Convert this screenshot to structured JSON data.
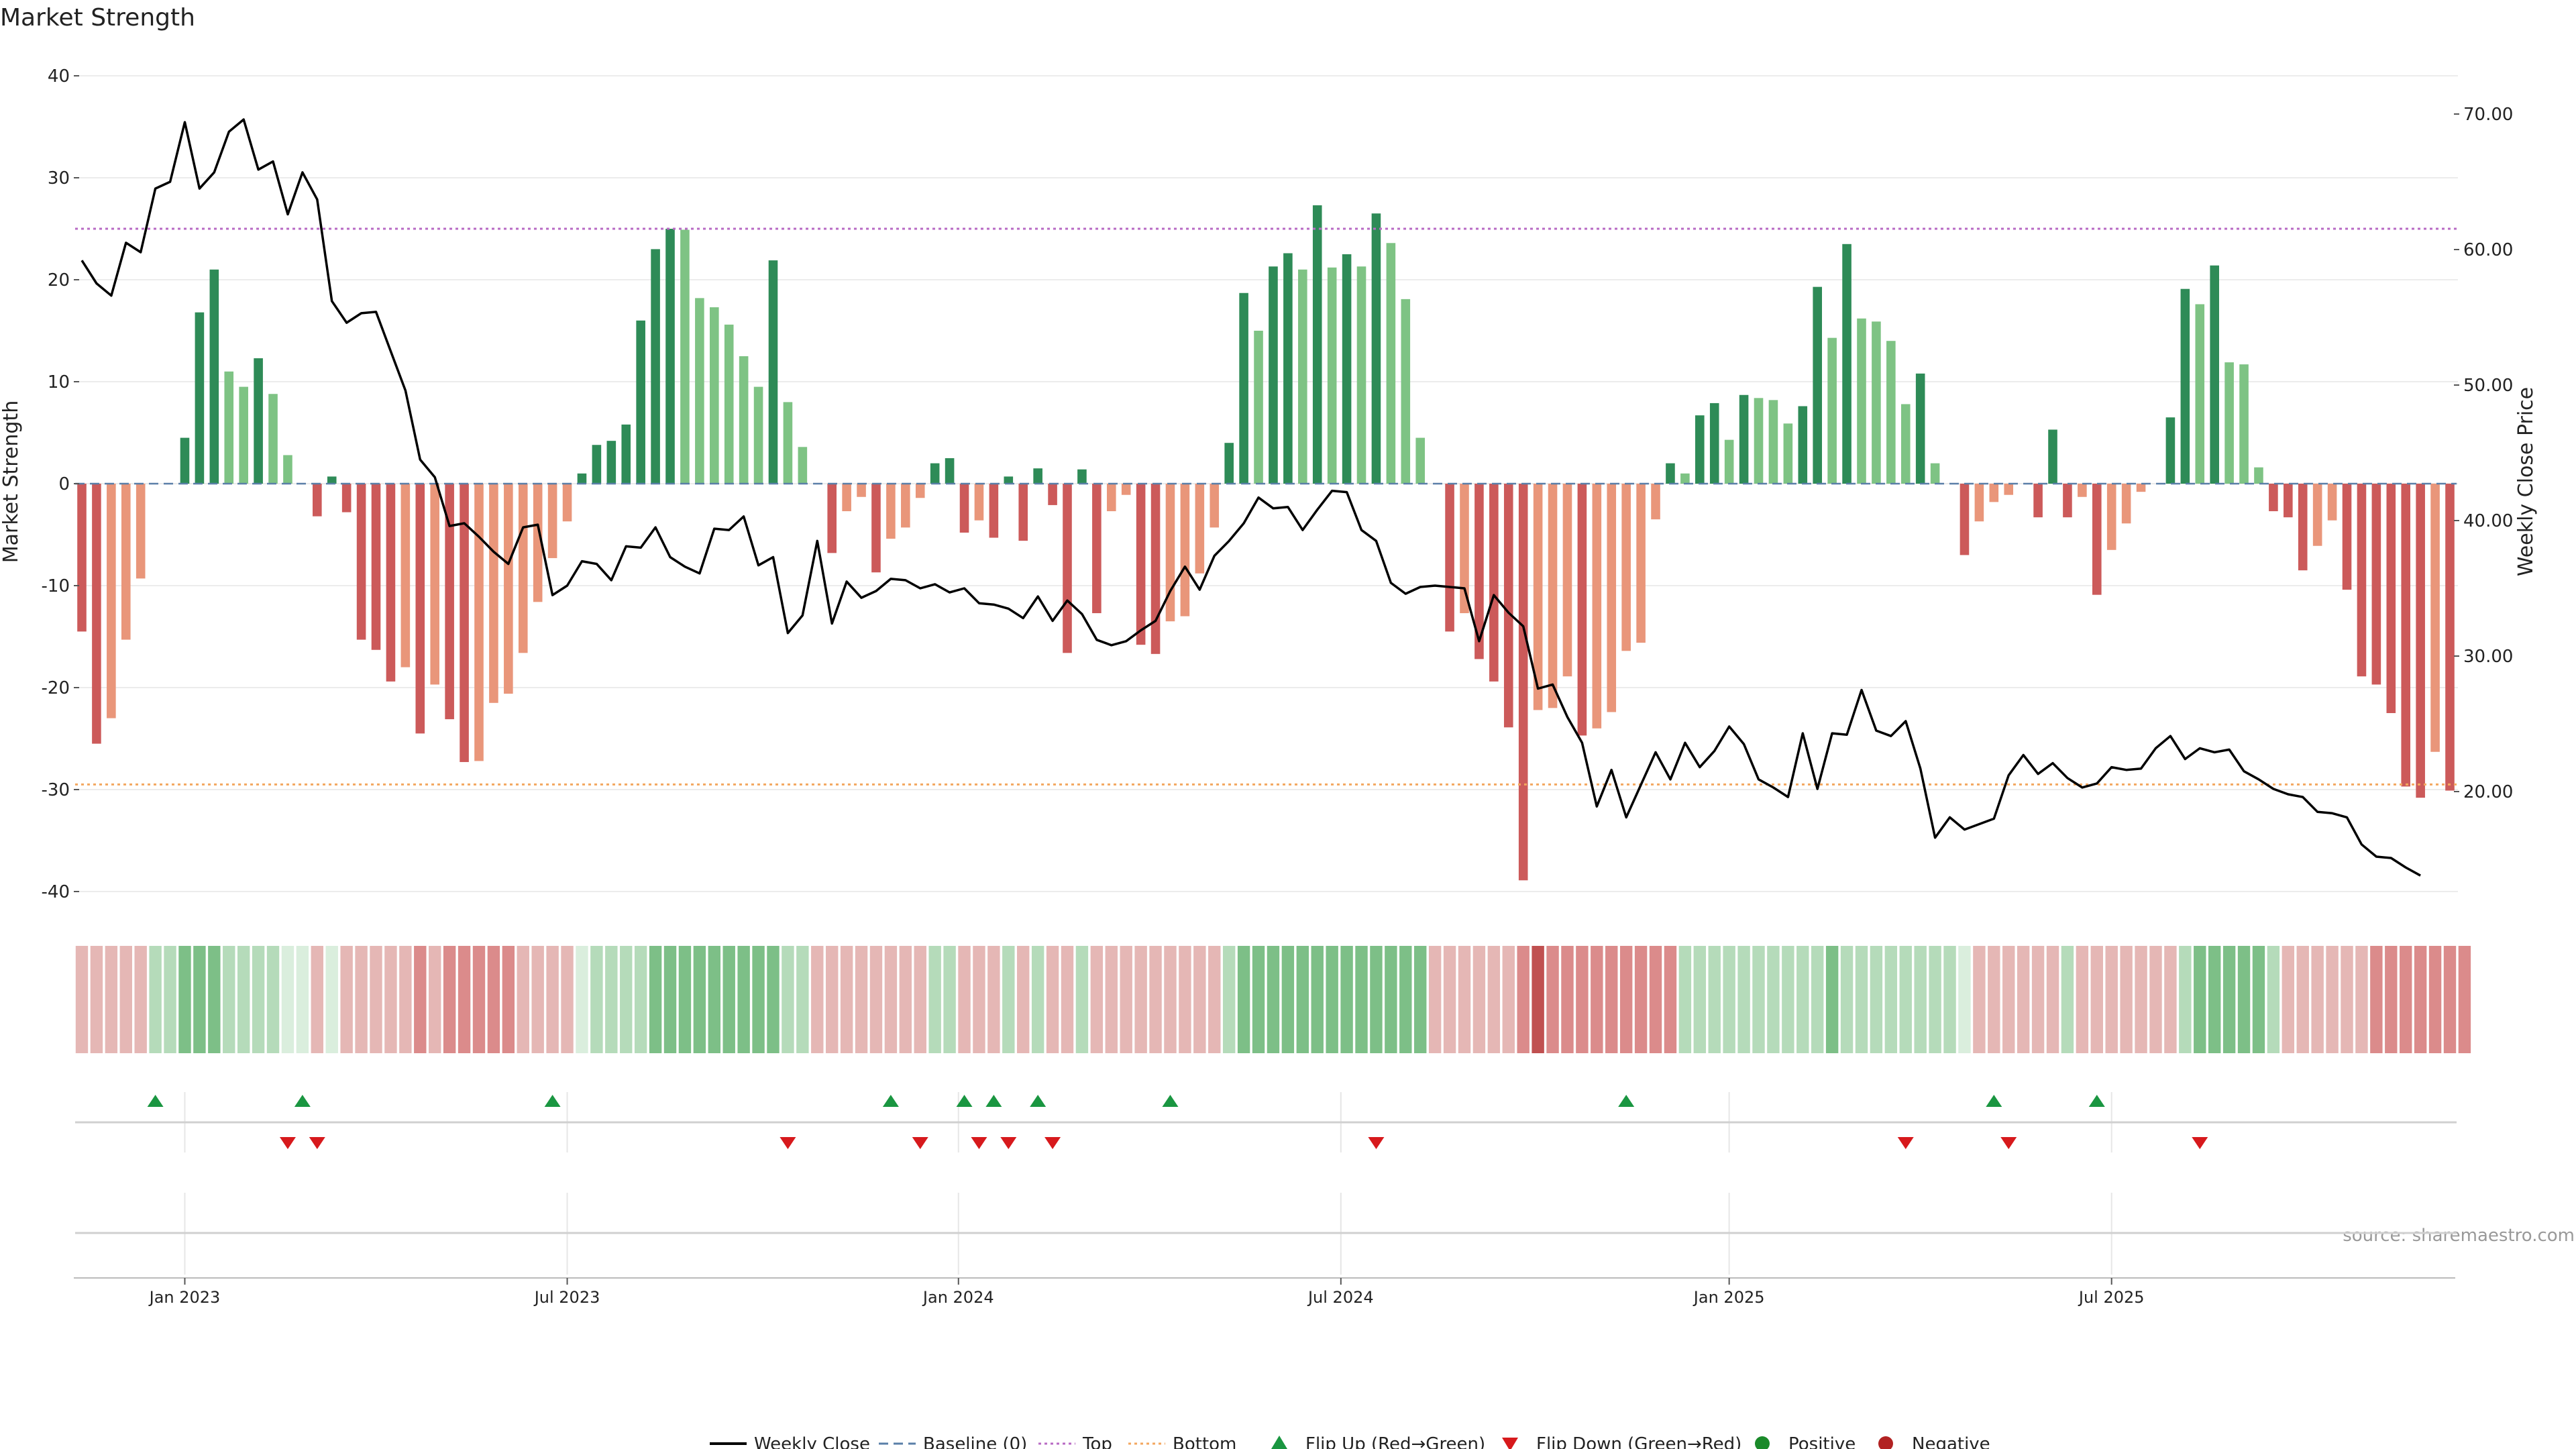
{
  "chart_data": {
    "type": "bar",
    "title": "Market Strength",
    "ylabel": "Market Strength",
    "y2label": "Weekly Close Price",
    "ylim": [
      -42,
      42
    ],
    "y2lim": [
      13.1,
      74.9
    ],
    "yticks": [
      -40,
      -30,
      -20,
      -10,
      0,
      10,
      20,
      30,
      40
    ],
    "y2ticks": [
      "20.00",
      "30.00",
      "40.00",
      "50.00",
      "60.00",
      "70.00"
    ],
    "top_line": 25,
    "bottom_line": -29.5,
    "x_tick_labels": [
      "Jan 2023",
      "Jul 2023",
      "Jan 2024",
      "Jul 2024",
      "Jan 2025",
      "Jul 2025"
    ],
    "x_tick_weeks": [
      7,
      33,
      59.6,
      85.6,
      112,
      138
    ],
    "grid": true,
    "legend_position": "bottom-center",
    "source_note": "source: sharemaestro.com",
    "colors": {
      "pos_strong": "#2e8b57",
      "pos_light": "#7ec384",
      "neg_strong": "#cc5a5a",
      "neg_light": "#e9967a",
      "price": "#000000",
      "top": "#b86bc4",
      "bottom": "#f3a75f",
      "baseline": "#5a7fa8",
      "flip_up": "#1a9641",
      "flip_down": "#d7191c"
    },
    "strength": [
      -14.5,
      -25.5,
      -23,
      -15.3,
      -9.3,
      0,
      0,
      4.5,
      16.8,
      21,
      11,
      9.5,
      12.3,
      8.8,
      2.8,
      0,
      -3.2,
      0.7,
      -2.8,
      -15.3,
      -16.3,
      -19.4,
      -18,
      -24.5,
      -19.7,
      -23.1,
      -27.3,
      -27.2,
      -21.5,
      -20.6,
      -16.6,
      -11.6,
      -7.3,
      -3.7,
      1,
      3.8,
      4.2,
      5.8,
      16,
      23,
      25,
      24.9,
      18.2,
      17.3,
      15.6,
      12.5,
      9.5,
      21.9,
      8,
      3.6,
      0,
      -6.8,
      -2.7,
      -1.3,
      -8.7,
      -5.4,
      -4.3,
      -1.4,
      2,
      2.5,
      -4.8,
      -3.6,
      -5.3,
      0.7,
      -5.6,
      1.5,
      -2.1,
      -16.6,
      1.4,
      -12.7,
      -2.7,
      -1.1,
      -15.8,
      -16.7,
      -13.5,
      -13,
      -8.8,
      -4.3,
      4,
      18.7,
      15,
      21.3,
      22.6,
      21,
      27.3,
      21.2,
      22.5,
      21.3,
      26.5,
      23.6,
      18.1,
      4.5,
      0,
      -14.5,
      -12.7,
      -17.2,
      -19.4,
      -23.9,
      -38.9,
      -22.2,
      -22,
      -18.9,
      -24.7,
      -24,
      -22.4,
      -16.4,
      -15.6,
      -3.5,
      2,
      1,
      6.7,
      7.9,
      4.3,
      8.7,
      8.4,
      8.2,
      5.9,
      7.6,
      19.3,
      14.3,
      23.5,
      16.2,
      15.9,
      14,
      7.8,
      10.8,
      2,
      0,
      -7,
      -3.7,
      -1.8,
      -1.1,
      0,
      -3.3,
      5.3,
      -3.3,
      -1.3,
      -10.9,
      -6.5,
      -3.9,
      -0.8,
      0,
      6.5,
      19.1,
      17.6,
      21.4,
      11.9,
      11.7,
      1.6,
      -2.7,
      -3.3,
      -8.5,
      -6.1,
      -3.6,
      -10.4,
      -18.9,
      -19.7,
      -22.5,
      -29.7,
      -30.8,
      -26.3,
      -30.1
    ],
    "heat": [
      -1,
      -1,
      -1,
      -1,
      -1,
      1,
      1,
      2,
      2,
      2,
      1,
      1,
      1,
      1,
      0,
      0,
      -1,
      0,
      -1,
      -1,
      -1,
      -1,
      -1,
      -2,
      -1,
      -2,
      -2,
      -2,
      -2,
      -2,
      -1,
      -1,
      -1,
      -1,
      0,
      1,
      1,
      1,
      1,
      2,
      2,
      2,
      2,
      2,
      2,
      2,
      2,
      2,
      1,
      1,
      -1,
      -1,
      -1,
      -1,
      -1,
      -1,
      -1,
      -1,
      1,
      1,
      -1,
      -1,
      -1,
      1,
      -1,
      1,
      -1,
      -1,
      1,
      -1,
      -1,
      -1,
      -1,
      -1,
      -1,
      -1,
      -1,
      -1,
      1,
      2,
      2,
      2,
      2,
      2,
      2,
      2,
      2,
      2,
      2,
      2,
      2,
      2,
      -1,
      -1,
      -1,
      -1,
      -1,
      -1,
      -2,
      -3,
      -2,
      -2,
      -2,
      -2,
      -2,
      -2,
      -2,
      -2,
      -2,
      1,
      1,
      1,
      1,
      1,
      1,
      1,
      1,
      1,
      1,
      2,
      1,
      1,
      1,
      1,
      1,
      1,
      1,
      1,
      0,
      -1,
      -1,
      -1,
      -1,
      -1,
      -1,
      1,
      -1,
      -1,
      -1,
      -1,
      -1,
      -1,
      -1,
      1,
      2,
      2,
      2,
      2,
      2,
      1,
      -1,
      -1,
      -1,
      -1,
      -1,
      -1,
      -2,
      -2,
      -2,
      -2,
      -2,
      -2,
      -2
    ],
    "flip_up_weeks": [
      5,
      15,
      32,
      55,
      60,
      62,
      65,
      74,
      105,
      130,
      137
    ],
    "flip_down_weeks": [
      14,
      16,
      48,
      57,
      61,
      63,
      66,
      88,
      124,
      131,
      144
    ],
    "price": [
      59.2,
      57.5,
      56.6,
      60.5,
      59.8,
      64.5,
      65,
      69.4,
      64.5,
      65.7,
      68.7,
      69.6,
      65.9,
      66.5,
      62.6,
      65.7,
      63.7,
      56.2,
      54.6,
      55.3,
      55.4,
      52.5,
      49.6,
      44.5,
      43.2,
      39.6,
      39.8,
      38.8,
      37.7,
      36.8,
      39.5,
      39.7,
      34.5,
      35.2,
      37,
      36.8,
      35.6,
      38.1,
      38,
      39.5,
      37.3,
      36.6,
      36.1,
      39.4,
      39.3,
      40.3,
      36.7,
      37.3,
      31.7,
      33,
      38.5,
      32.4,
      35.5,
      34.3,
      34.8,
      35.7,
      35.6,
      35,
      35.3,
      34.7,
      35,
      33.9,
      33.8,
      33.5,
      32.8,
      34.4,
      32.6,
      34.1,
      33.1,
      31.2,
      30.8,
      31.1,
      31.9,
      32.6,
      34.8,
      36.6,
      34.9,
      37.4,
      38.5,
      39.8,
      41.7,
      40.9,
      41,
      39.3,
      40.8,
      42.2,
      42.1,
      39.3,
      38.5,
      35.4,
      34.6,
      35.1,
      35.2,
      35.1,
      35,
      31.1,
      34.5,
      33.2,
      32.2,
      27.6,
      27.9,
      25.5,
      23.6,
      18.9,
      21.6,
      18.1,
      20.5,
      22.9,
      20.9,
      23.6,
      21.8,
      23,
      24.8,
      23.5,
      20.9,
      20.3,
      19.6,
      24.3,
      20.2,
      24.3,
      24.2,
      27.5,
      24.5,
      24.1,
      25.2,
      21.7,
      16.6,
      18.1,
      17.2,
      17.6,
      18,
      21.2,
      22.7,
      21.3,
      22.1,
      21,
      20.3,
      20.6,
      21.8,
      21.6,
      21.7,
      23.2,
      24.1,
      22.4,
      23.2,
      22.9,
      23.1,
      21.5,
      20.9,
      20.2,
      19.8,
      19.6,
      18.5,
      18.4,
      18.1,
      16.1,
      15.2,
      15.1,
      14.4,
      13.8
    ]
  },
  "legend": [
    {
      "label": "Weekly Close",
      "kind": "line",
      "color": "#000000"
    },
    {
      "label": "Baseline (0)",
      "kind": "dash",
      "color": "#5a7fa8"
    },
    {
      "label": "Top",
      "kind": "dots",
      "color": "#b86bc4"
    },
    {
      "label": "Bottom",
      "kind": "dots",
      "color": "#f3a75f"
    },
    {
      "label": "Flip Up (Red→Green)",
      "kind": "tri-up",
      "color": "#1a9641"
    },
    {
      "label": "Flip Down (Green→Red)",
      "kind": "tri-down",
      "color": "#d7191c"
    },
    {
      "label": "Positive",
      "kind": "dot",
      "color": "#1a8a2a"
    },
    {
      "label": "Negative",
      "kind": "dot",
      "color": "#b22222"
    }
  ]
}
